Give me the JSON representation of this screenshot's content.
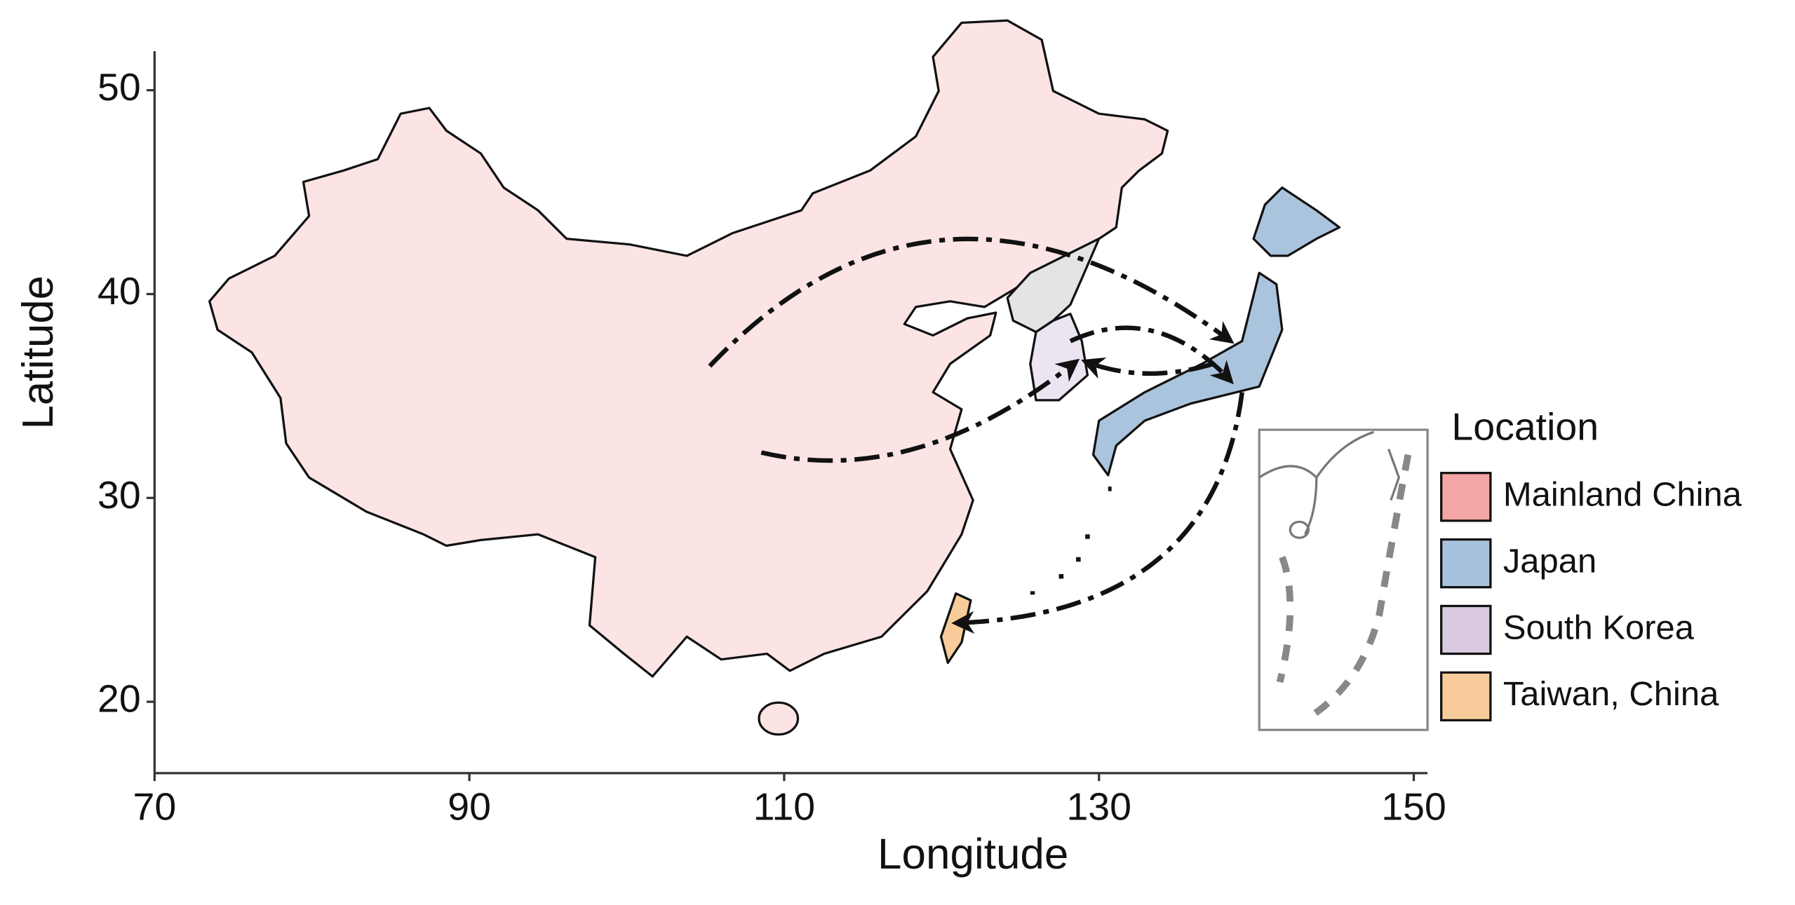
{
  "chart_data": {
    "type": "map",
    "xlabel": "Longitude",
    "ylabel": "Latitude",
    "xlim": [
      70,
      150
    ],
    "ylim": [
      16.5,
      52
    ],
    "xticks": [
      70,
      90,
      110,
      130,
      150
    ],
    "yticks": [
      20,
      30,
      40,
      50
    ],
    "legend_title": "Location",
    "legend_position": "right",
    "series": [
      {
        "name": "Mainland China",
        "color": "#f4a6a6"
      },
      {
        "name": "Japan",
        "color": "#a6c1dc"
      },
      {
        "name": "South Korea",
        "color": "#d9c9e1"
      },
      {
        "name": "Taiwan, China",
        "color": "#f7cc9a"
      }
    ]
  }
}
